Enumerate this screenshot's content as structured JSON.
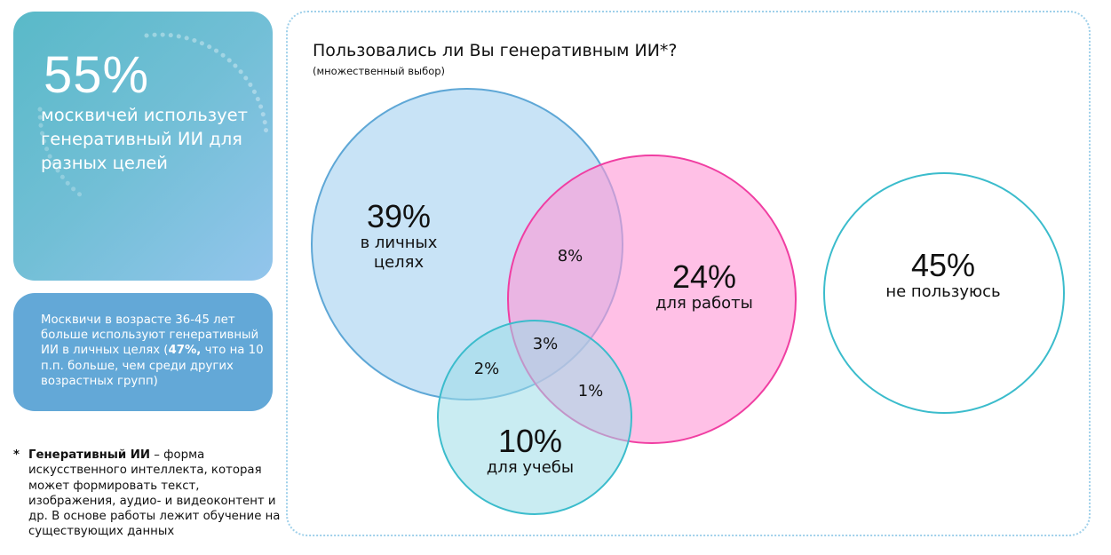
{
  "highlight": {
    "value": "55%",
    "text": "москвичей использует генеративный ИИ для разных целей"
  },
  "insight": {
    "text_before": "Москвичи в возрасте 36-45 лет больше используют генеративный ИИ в личных целях (",
    "bold": "47%,",
    "text_after": " что на 10 п.п. больше, чем среди других возрастных групп)"
  },
  "footnote": {
    "star": "*",
    "term": "Генеративный ИИ",
    "definition": " – форма искусственного интеллекта, которая может формировать текст, изображения, аудио- и видеоконтент и др. В основе работы лежит обучение на существующих данных"
  },
  "question": {
    "title": "Пользовались ли Вы генеративным ИИ*?",
    "subtitle": "(множественный выбор)"
  },
  "diagram": {
    "type": "venn",
    "sets": [
      {
        "value": "39%",
        "label": "в личных целях",
        "label_line1": "в личных",
        "label_line2": "целях",
        "color": "#c8e3f6",
        "stroke": "#5ea7d6"
      },
      {
        "value": "24%",
        "label": "для работы",
        "color": "#ff9ad6",
        "stroke": "#f03ea2"
      },
      {
        "value": "10%",
        "label": "для учебы",
        "color": "#9ddde8",
        "stroke": "#3bbccc"
      },
      {
        "value": "45%",
        "label": "не пользуюсь",
        "color": "#ffffff",
        "stroke": "#3bbccc"
      }
    ],
    "intersections": {
      "personal_work": "8%",
      "personal_study": "2%",
      "work_study": "1%",
      "all_three": "3%"
    }
  }
}
